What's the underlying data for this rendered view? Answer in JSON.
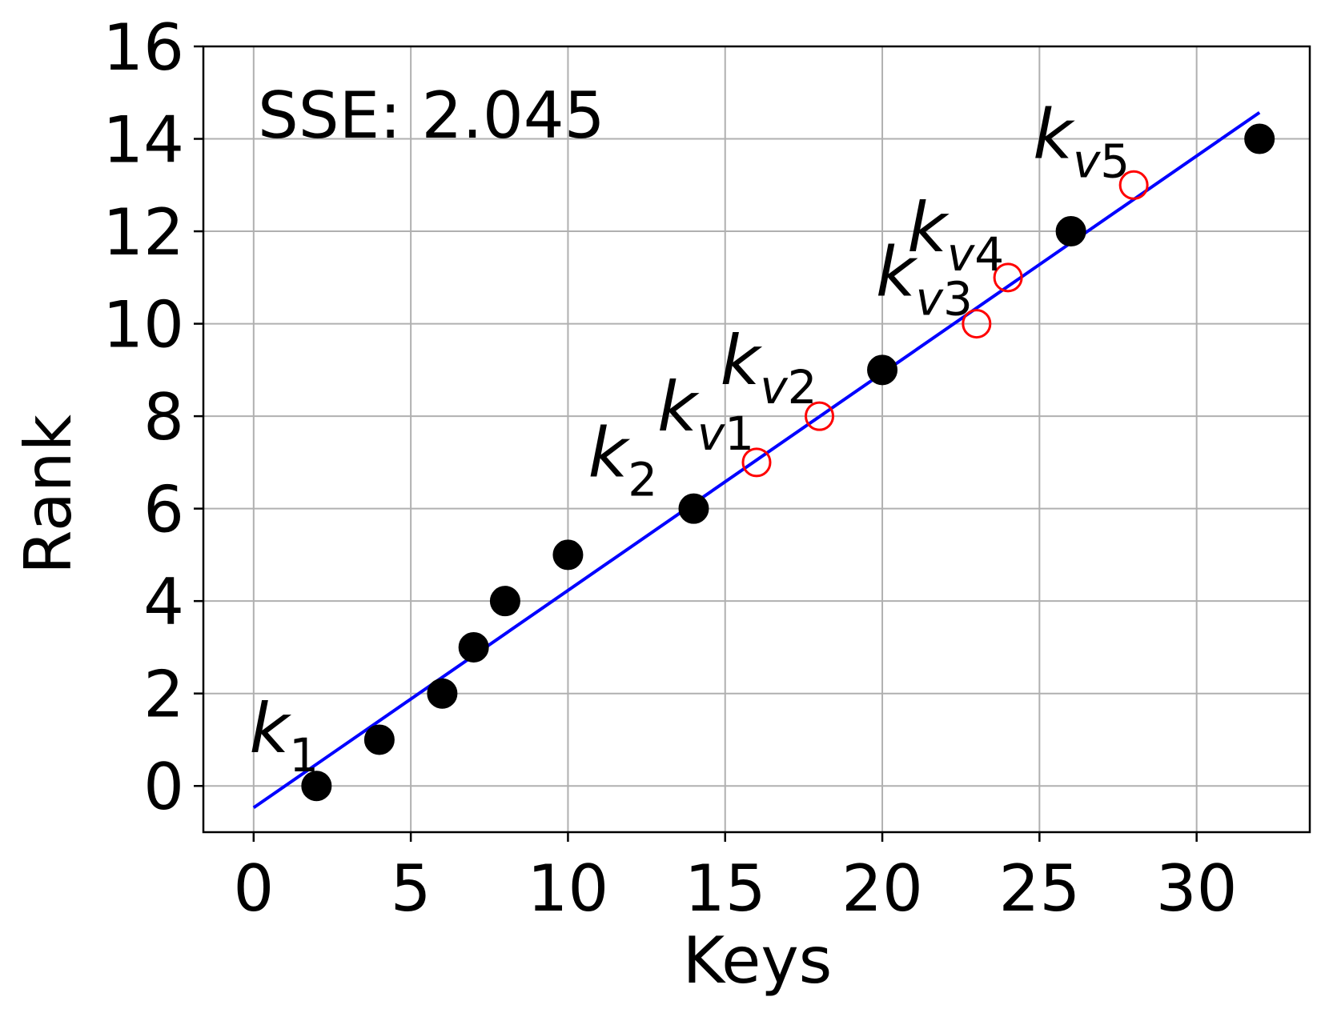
{
  "chart_data": {
    "type": "scatter",
    "xlabel": "Keys",
    "ylabel": "Rank",
    "xlim": [
      -1.6,
      33.6
    ],
    "ylim": [
      -1,
      16
    ],
    "xticks": [
      0,
      5,
      10,
      15,
      20,
      25,
      30
    ],
    "yticks": [
      0,
      2,
      4,
      6,
      8,
      10,
      12,
      14,
      16
    ],
    "xtick_labels": [
      "0",
      "5",
      "10",
      "15",
      "20",
      "25",
      "30"
    ],
    "ytick_labels": [
      "0",
      "2",
      "4",
      "6",
      "8",
      "10",
      "12",
      "14",
      "16"
    ],
    "grid": true,
    "annotation": "SSE: 2.045",
    "series": [
      {
        "marker": "filled-circle",
        "color": "#000000",
        "x": [
          2,
          4,
          6,
          7,
          8,
          10,
          14,
          20,
          26,
          32
        ],
        "y": [
          0,
          1,
          2,
          3,
          4,
          5,
          6,
          9,
          12,
          14
        ]
      },
      {
        "marker": "open-circle",
        "color": "#ff0000",
        "x": [
          16,
          18,
          23,
          24,
          28
        ],
        "y": [
          7,
          8,
          10,
          11,
          13
        ]
      }
    ],
    "fit_line": {
      "color": "#0000ff",
      "x": [
        0,
        32
      ],
      "y": [
        -0.47,
        14.57
      ]
    },
    "point_labels": [
      {
        "base": "k",
        "sub": "1",
        "x": 2,
        "y": 0
      },
      {
        "base": "k",
        "sub": "2",
        "x": 14,
        "y": 6
      },
      {
        "base": "k",
        "sub": "v1",
        "x": 16,
        "y": 7
      },
      {
        "base": "k",
        "sub": "v2",
        "x": 18,
        "y": 8
      },
      {
        "base": "k",
        "sub": "v3",
        "x": 23,
        "y": 10
      },
      {
        "base": "k",
        "sub": "v4",
        "x": 24,
        "y": 11
      },
      {
        "base": "k",
        "sub": "v5",
        "x": 28,
        "y": 13
      }
    ]
  }
}
